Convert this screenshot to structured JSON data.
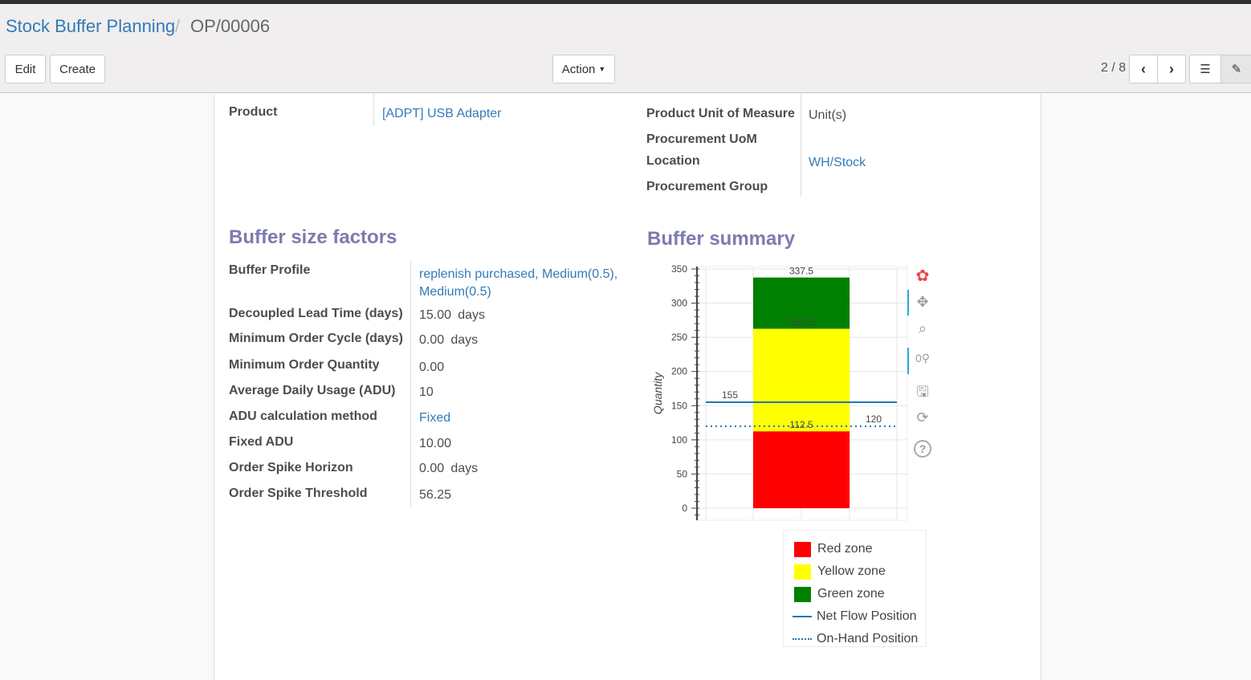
{
  "breadcrumb": {
    "parent": "Stock Buffer Planning",
    "separator": "/",
    "current": "OP/00006"
  },
  "buttons": {
    "edit": "Edit",
    "create": "Create",
    "action": "Action"
  },
  "pager": {
    "value": "2 / 8"
  },
  "product": {
    "label": "Product",
    "value": "[ADPT] USB Adapter"
  },
  "right_fields": [
    {
      "label": "Product Unit of Measure",
      "value": "Unit(s)"
    },
    {
      "label": "Procurement UoM",
      "value": ""
    },
    {
      "label": "Location",
      "value": "WH/Stock"
    },
    {
      "label": "Procurement Group",
      "value": ""
    }
  ],
  "factors": {
    "title": "Buffer size factors",
    "fields": [
      {
        "label": "Buffer Profile",
        "value": "replenish purchased, Medium(0.5), Medium(0.5)",
        "unit": ""
      },
      {
        "label": "Decoupled Lead Time (days)",
        "value": "15.00",
        "unit": "days"
      },
      {
        "label": "Minimum Order Cycle (days)",
        "value": "0.00",
        "unit": "days"
      },
      {
        "label": "Minimum Order Quantity",
        "value": "0.00",
        "unit": ""
      },
      {
        "label": "Average Daily Usage (ADU)",
        "value": "10",
        "unit": ""
      },
      {
        "label": "ADU calculation method",
        "value": "Fixed",
        "unit": ""
      },
      {
        "label": "Fixed ADU",
        "value": "10.00",
        "unit": ""
      },
      {
        "label": "Order Spike Horizon",
        "value": "0.00",
        "unit": "days"
      },
      {
        "label": "Order Spike Threshold",
        "value": "56.25",
        "unit": ""
      }
    ]
  },
  "summary": {
    "title": "Buffer summary"
  },
  "chart_data": {
    "type": "bar",
    "stacked": true,
    "ylabel": "Quantity",
    "ylim": [
      0,
      350
    ],
    "yticks": [
      "0",
      "50",
      "100",
      "150",
      "200",
      "250",
      "300",
      "350"
    ],
    "grid": true,
    "zones": [
      {
        "name": "Red zone",
        "bottom": 0,
        "top": 112.5,
        "label": "112.5",
        "color": "#ff0000"
      },
      {
        "name": "Yellow zone",
        "bottom": 112.5,
        "top": 262.5,
        "label": "262.5",
        "color": "#ffff00"
      },
      {
        "name": "Green zone",
        "bottom": 262.5,
        "top": 337.5,
        "label": "337.5",
        "color": "#008000"
      }
    ],
    "lines": [
      {
        "name": "Net Flow Position",
        "value": 155,
        "label": "155",
        "style": "solid",
        "color": "#1f77b4"
      },
      {
        "name": "On-Hand Position",
        "value": 120,
        "label": "120",
        "style": "dotted",
        "color": "#1f77b4"
      }
    ],
    "legend_placement": "bottom"
  }
}
